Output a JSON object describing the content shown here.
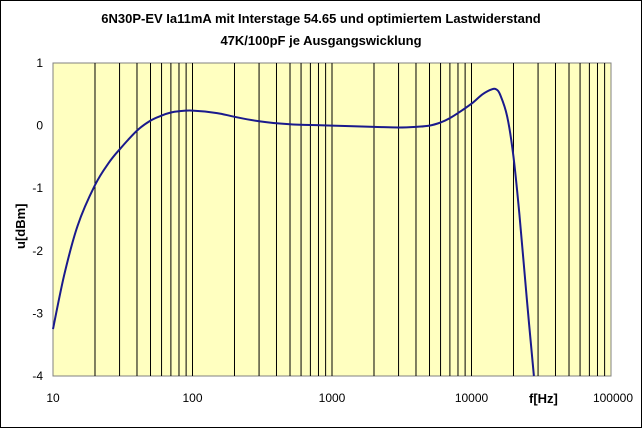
{
  "chart_data": {
    "type": "line",
    "title_line1": "6N30P-EV Ia11mA mit Interstage 54.65 und optimiertem Lastwiderstand",
    "title_line2": "47K/100pF je Ausgangswicklung",
    "xlabel": "f[Hz]",
    "ylabel": "u[dBm]",
    "x_scale": "log",
    "xlim": [
      10,
      100000
    ],
    "ylim": [
      -4,
      1
    ],
    "x_ticks": [
      "10",
      "100",
      "1000",
      "10000",
      "100000"
    ],
    "y_ticks": [
      "1",
      "0",
      "-1",
      "-2",
      "-3",
      "-4"
    ],
    "grid": "vertical",
    "legend": "none",
    "plot_background": "#ffffc0",
    "line_color": "#1a1a8c",
    "series": [
      {
        "x": [
          10,
          12,
          15,
          20,
          25,
          30,
          40,
          50,
          60,
          70,
          80,
          100,
          150,
          200,
          300,
          500,
          700,
          1000,
          2000,
          3000,
          4000,
          5000,
          6000,
          7000,
          8000,
          10000,
          12000,
          14000,
          15000,
          16000,
          18000,
          20000,
          22000,
          25000,
          28000
        ],
        "y": [
          -3.25,
          -2.4,
          -1.6,
          -0.95,
          -0.6,
          -0.38,
          -0.08,
          0.08,
          0.16,
          0.21,
          0.23,
          0.24,
          0.2,
          0.14,
          0.07,
          0.02,
          0.01,
          0.0,
          -0.02,
          -0.03,
          -0.02,
          0.0,
          0.05,
          0.12,
          0.2,
          0.35,
          0.5,
          0.58,
          0.58,
          0.5,
          0.15,
          -0.5,
          -1.4,
          -2.8,
          -4.0
        ]
      }
    ]
  }
}
